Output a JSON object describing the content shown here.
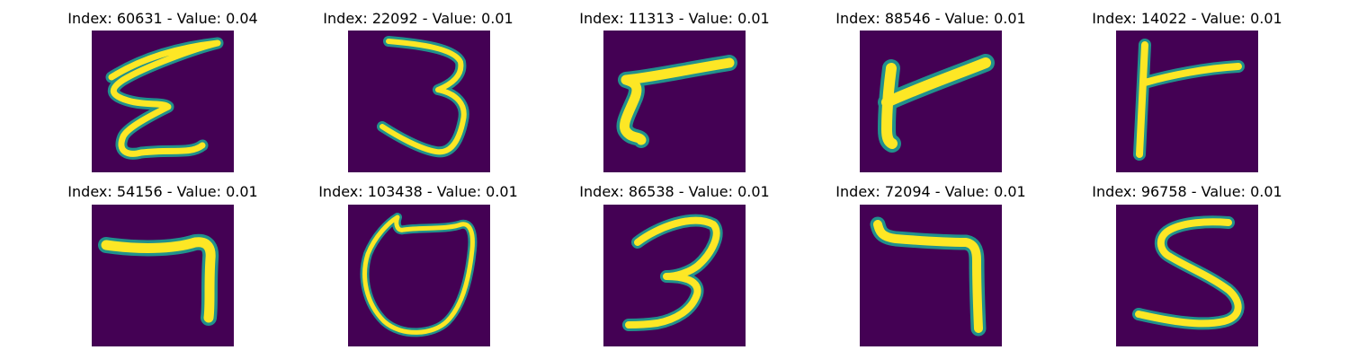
{
  "figure": {
    "background_color": "#ffffff",
    "colormap": "viridis",
    "colors": {
      "low": "#440154",
      "mid": "#21918c",
      "high": "#fde725"
    },
    "panels": [
      {
        "title": "Index: 60631 - Value: 0.04",
        "index": 60631,
        "value": 0.04
      },
      {
        "title": "Index: 22092 - Value: 0.01",
        "index": 22092,
        "value": 0.01
      },
      {
        "title": "Index: 11313 - Value: 0.01",
        "index": 11313,
        "value": 0.01
      },
      {
        "title": "Index: 88546 - Value: 0.01",
        "index": 88546,
        "value": 0.01
      },
      {
        "title": "Index: 14022 - Value: 0.01",
        "index": 14022,
        "value": 0.01
      },
      {
        "title": "Index: 54156 - Value: 0.01",
        "index": 54156,
        "value": 0.01
      },
      {
        "title": "Index: 103438 - Value: 0.01",
        "index": 103438,
        "value": 0.01
      },
      {
        "title": "Index: 86538 - Value: 0.01",
        "index": 86538,
        "value": 0.01
      },
      {
        "title": "Index: 72094 - Value: 0.01",
        "index": 72094,
        "value": 0.01
      },
      {
        "title": "Index: 96758 - Value: 0.01",
        "index": 96758,
        "value": 0.01
      }
    ]
  }
}
